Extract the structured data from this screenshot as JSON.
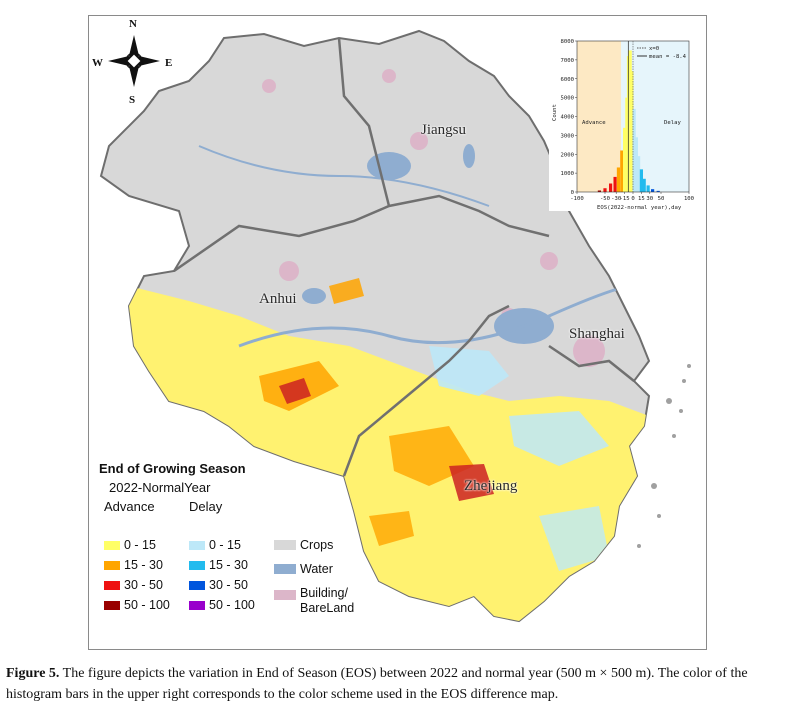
{
  "map": {
    "compass": {
      "n": "N",
      "s": "S",
      "e": "E",
      "w": "W"
    },
    "regions": [
      {
        "name": "Jiangsu"
      },
      {
        "name": "Anhui"
      },
      {
        "name": "Shanghai"
      },
      {
        "name": "Zhejiang"
      }
    ],
    "colors": {
      "crops": "#d8d8d8",
      "water": "#8fadd0",
      "building": "#dcb6c9",
      "advance": [
        "#ffff66",
        "#ffa500",
        "#ee1111",
        "#990000"
      ],
      "delay": [
        "#bde8f8",
        "#22bbee",
        "#0055dd",
        "#9900cc"
      ]
    }
  },
  "legend": {
    "title": "End of Growing Season",
    "subtitle": "2022-NormalYear",
    "advance_header": "Advance",
    "delay_header": "Delay",
    "ranges": [
      "0 - 15",
      "15 - 30",
      "30 - 50",
      "50 - 100"
    ],
    "landcover": [
      "Crops",
      "Water",
      "Building/",
      "BareLand"
    ]
  },
  "chart_data": {
    "type": "bar",
    "title": "",
    "xlabel": "EOS(2022-normal year),day",
    "ylabel": "Count",
    "xlim": [
      -100,
      100
    ],
    "ylim": [
      0,
      8000
    ],
    "x_ticks": [
      "-100",
      "-50",
      "-30",
      "-15",
      "0",
      "15",
      "30",
      "50",
      "100"
    ],
    "y_ticks": [
      "0",
      "1000",
      "2000",
      "3000",
      "4000",
      "5000",
      "6000",
      "7000",
      "8000"
    ],
    "region_labels": {
      "left": "Advance",
      "right": "Delay"
    },
    "legend": {
      "zero_line": "x=0",
      "mean_line": "mean = -8.4"
    },
    "mean": -8.4,
    "bins": [
      {
        "x": -60,
        "count": 80
      },
      {
        "x": -50,
        "count": 200
      },
      {
        "x": -40,
        "count": 450
      },
      {
        "x": -32,
        "count": 800
      },
      {
        "x": -26,
        "count": 1300
      },
      {
        "x": -20,
        "count": 2200
      },
      {
        "x": -15,
        "count": 3400
      },
      {
        "x": -11,
        "count": 5000
      },
      {
        "x": -8,
        "count": 7200
      },
      {
        "x": -5,
        "count": 7500
      },
      {
        "x": -2,
        "count": 6400
      },
      {
        "x": 2,
        "count": 4400
      },
      {
        "x": 6,
        "count": 2900
      },
      {
        "x": 10,
        "count": 1900
      },
      {
        "x": 15,
        "count": 1200
      },
      {
        "x": 20,
        "count": 700
      },
      {
        "x": 27,
        "count": 350
      },
      {
        "x": 35,
        "count": 150
      },
      {
        "x": 45,
        "count": 60
      }
    ]
  },
  "caption": {
    "label": "Figure 5.",
    "text": "The figure depicts the variation in End of Season (EOS) between 2022 and normal year (500 m × 500 m). The color of the histogram bars in the upper right corresponds to the color scheme used in the EOS difference map."
  }
}
